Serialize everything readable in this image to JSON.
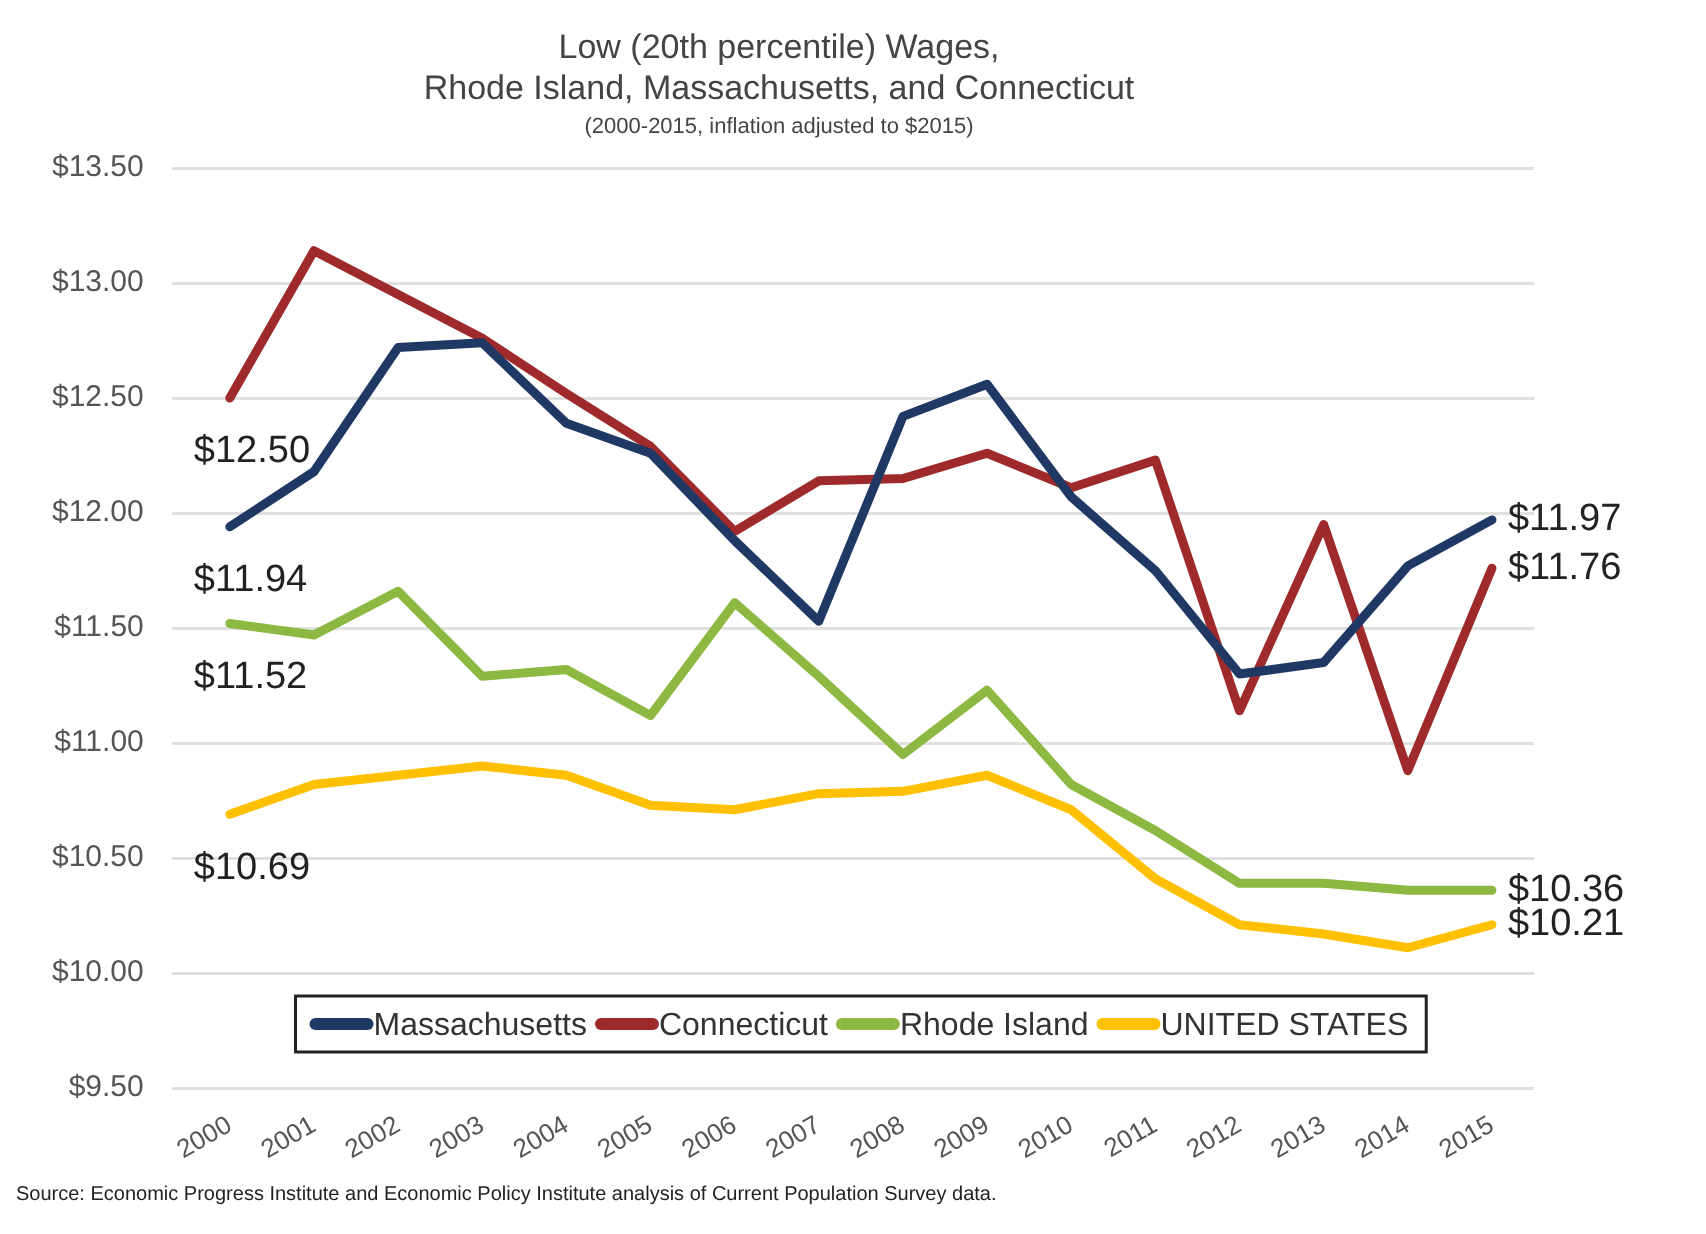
{
  "chart_data": {
    "type": "line",
    "title": "Low (20th percentile) Wages,\nRhode Island, Massachusetts, and Connecticut",
    "subtitle": "(2000-2015, inflation adjusted to $2015)",
    "categories": [
      "2000",
      "2001",
      "2002",
      "2003",
      "2004",
      "2005",
      "2006",
      "2007",
      "2008",
      "2009",
      "2010",
      "2011",
      "2012",
      "2013",
      "2014",
      "2015"
    ],
    "series": [
      {
        "name": "Massachusetts",
        "color": "#1f3864",
        "values": [
          11.94,
          12.18,
          12.72,
          12.74,
          12.39,
          12.26,
          11.88,
          11.53,
          12.42,
          12.56,
          12.07,
          11.75,
          11.3,
          11.35,
          11.77,
          11.97
        ]
      },
      {
        "name": "Connecticut",
        "color": "#9e2a2b",
        "values": [
          12.5,
          13.14,
          12.95,
          12.76,
          12.52,
          12.29,
          11.92,
          12.14,
          12.15,
          12.26,
          12.11,
          12.23,
          11.14,
          11.95,
          10.88,
          11.76
        ]
      },
      {
        "name": "Rhode Island",
        "color": "#8db943",
        "values": [
          11.52,
          11.47,
          11.66,
          11.29,
          11.32,
          11.12,
          11.61,
          11.29,
          10.95,
          11.23,
          10.82,
          10.62,
          10.39,
          10.39,
          10.36,
          10.36
        ]
      },
      {
        "name": "UNITED STATES",
        "color": "#ffc000",
        "values": [
          10.69,
          10.82,
          10.86,
          10.9,
          10.86,
          10.73,
          10.71,
          10.78,
          10.79,
          10.86,
          10.71,
          10.41,
          10.21,
          10.17,
          10.11,
          10.21
        ]
      }
    ],
    "ylim": [
      9.5,
      13.5
    ],
    "yticks": [
      {
        "value": 9.5,
        "label": "$9.50"
      },
      {
        "value": 10,
        "label": "$10.00"
      },
      {
        "value": 10.5,
        "label": "$10.50"
      },
      {
        "value": 11,
        "label": "$11.00"
      },
      {
        "value": 11.5,
        "label": "$11.50"
      },
      {
        "value": 12,
        "label": "$12.00"
      },
      {
        "value": 12.5,
        "label": "$12.50"
      },
      {
        "value": 13,
        "label": "$13.00"
      },
      {
        "value": 13.5,
        "label": "$13.50"
      }
    ],
    "grid": "y",
    "legend": "bottom",
    "marker": "none",
    "line_style": "solid",
    "annotations": [
      {
        "text": "$12.50",
        "x": "2000",
        "y": 12.5
      },
      {
        "text": "$11.94",
        "x": "2000",
        "y": 11.94
      },
      {
        "text": "$11.52",
        "x": "2000",
        "y": 11.52
      },
      {
        "text": "$10.69",
        "x": "2000",
        "y": 10.69
      },
      {
        "text": "$11.97",
        "x": "2015",
        "y": 11.97
      },
      {
        "text": "$11.76",
        "x": "2015",
        "y": 11.76
      },
      {
        "text": "$10.36",
        "x": "2015",
        "y": 10.36
      },
      {
        "text": "$10.21",
        "x": "2015",
        "y": 10.21
      },
      "Source: Economic Progress Institute and Economic Policy Institute analysis of Current Population Survey data."
    ]
  }
}
